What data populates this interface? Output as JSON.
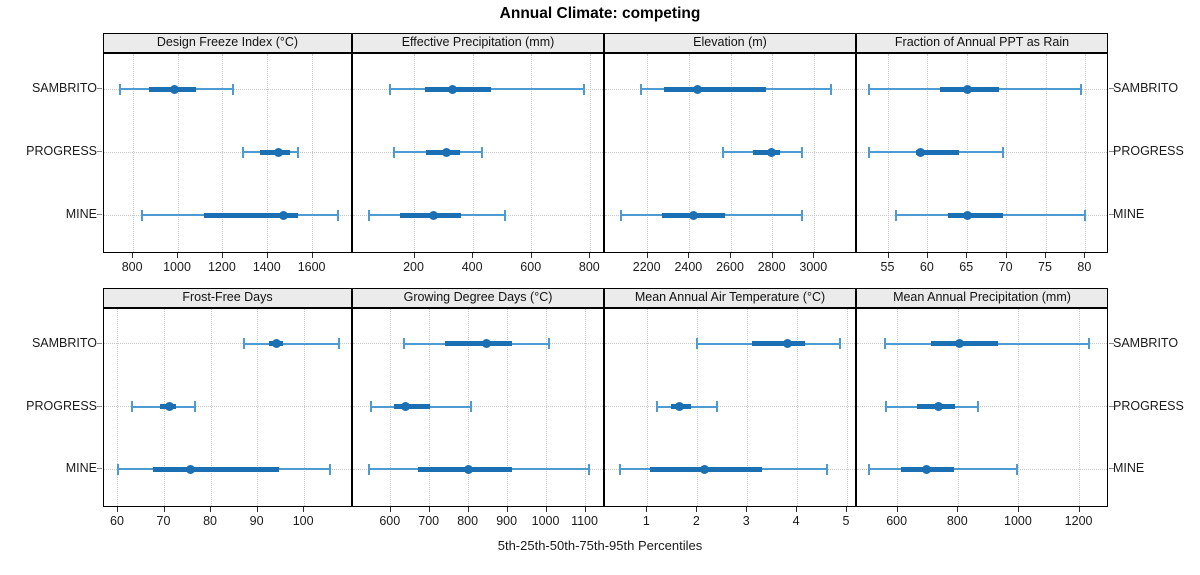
{
  "title": "Annual Climate: competing",
  "caption": "5th-25th-50th-75th-95th Percentiles",
  "colors": {
    "whisker": "#4e9bd3",
    "cap": "#4e9bd3",
    "iqr_bar": "#1b6fb3",
    "median_dot": "#1b6fb3",
    "gridline": "#c8c8c8",
    "strip_bg": "#ebebeb",
    "border": "#000000"
  },
  "chart_data": {
    "type": "interval-dotplot",
    "title": "Annual Climate: competing",
    "subtitle": "5th-25th-50th-75th-95th Percentiles",
    "percentiles": [
      5,
      25,
      50,
      75,
      95
    ],
    "rows": [
      "SAMBRITO",
      "PROGRESS",
      "MINE"
    ],
    "grid": "dotted",
    "layout": "2x4",
    "panels": [
      {
        "title": "Design Freeze Index (°C)",
        "xlim": [
          670,
          1780
        ],
        "ticks": [
          800,
          1000,
          1200,
          1400,
          1600
        ],
        "series": [
          {
            "name": "SAMBRITO",
            "values": [
              740,
              870,
              985,
              1080,
              1245
            ]
          },
          {
            "name": "PROGRESS",
            "values": [
              1290,
              1365,
              1450,
              1500,
              1535
            ]
          },
          {
            "name": "MINE",
            "values": [
              840,
              1115,
              1470,
              1535,
              1715
            ]
          }
        ]
      },
      {
        "title": "Effective Precipitation (mm)",
        "xlim": [
          -10,
          850
        ],
        "ticks": [
          200,
          400,
          600,
          800
        ],
        "series": [
          {
            "name": "SAMBRITO",
            "values": [
              115,
              235,
              330,
              460,
              780
            ]
          },
          {
            "name": "PROGRESS",
            "values": [
              130,
              240,
              310,
              355,
              430
            ]
          },
          {
            "name": "MINE",
            "values": [
              45,
              150,
              265,
              360,
              510
            ]
          }
        ]
      },
      {
        "title": "Elevation (m)",
        "xlim": [
          1995,
          3205
        ],
        "ticks": [
          2200,
          2400,
          2600,
          2800,
          3000
        ],
        "series": [
          {
            "name": "SAMBRITO",
            "values": [
              2170,
              2280,
              2440,
              2770,
              3080
            ]
          },
          {
            "name": "PROGRESS",
            "values": [
              2560,
              2705,
              2795,
              2835,
              2940
            ]
          },
          {
            "name": "MINE",
            "values": [
              2070,
              2270,
              2420,
              2570,
              2940
            ]
          }
        ]
      },
      {
        "title": "Fraction of Annual PPT as Rain",
        "xlim": [
          51,
          83
        ],
        "ticks": [
          55,
          60,
          65,
          70,
          75,
          80
        ],
        "series": [
          {
            "name": "SAMBRITO",
            "values": [
              52.5,
              61.5,
              65,
              69,
              79.5
            ]
          },
          {
            "name": "PROGRESS",
            "values": [
              52.5,
              58.5,
              59,
              64,
              69.5
            ]
          },
          {
            "name": "MINE",
            "values": [
              56,
              62.5,
              65,
              69.5,
              80
            ]
          }
        ]
      },
      {
        "title": "Frost-Free Days",
        "xlim": [
          57,
          110.5
        ],
        "ticks": [
          60,
          70,
          80,
          90,
          100
        ],
        "series": [
          {
            "name": "SAMBRITO",
            "values": [
              87,
              92.5,
              94,
              95.5,
              107.5
            ]
          },
          {
            "name": "PROGRESS",
            "values": [
              63,
              69,
              71,
              72.5,
              76.5
            ]
          },
          {
            "name": "MINE",
            "values": [
              60,
              67.5,
              75.5,
              94.5,
              105.5
            ]
          }
        ]
      },
      {
        "title": "Growing Degree Days (°C)",
        "xlim": [
          503,
          1150
        ],
        "ticks": [
          600,
          700,
          800,
          900,
          1000,
          1100
        ],
        "series": [
          {
            "name": "SAMBRITO",
            "values": [
              633,
              740,
              845,
              910,
              1005
            ]
          },
          {
            "name": "PROGRESS",
            "values": [
              550,
              607,
              638,
              700,
              805
            ]
          },
          {
            "name": "MINE",
            "values": [
              545,
              670,
              800,
              912,
              1110
            ]
          }
        ]
      },
      {
        "title": "Mean Annual Air Temperature (°C)",
        "xlim": [
          0.15,
          5.2
        ],
        "ticks": [
          1,
          2,
          3,
          4,
          5
        ],
        "series": [
          {
            "name": "SAMBRITO",
            "values": [
              2.0,
              3.1,
              3.8,
              4.15,
              4.85
            ]
          },
          {
            "name": "PROGRESS",
            "values": [
              1.2,
              1.48,
              1.65,
              1.88,
              2.4
            ]
          },
          {
            "name": "MINE",
            "values": [
              0.45,
              1.05,
              2.15,
              3.3,
              4.6
            ]
          }
        ]
      },
      {
        "title": "Mean Annual Precipitation (mm)",
        "xlim": [
          466,
          1297
        ],
        "ticks": [
          600,
          800,
          1000,
          1200
        ],
        "series": [
          {
            "name": "SAMBRITO",
            "values": [
              558,
              710,
              805,
              930,
              1230
            ]
          },
          {
            "name": "PROGRESS",
            "values": [
              563,
              665,
              735,
              790,
              865
            ]
          },
          {
            "name": "MINE",
            "values": [
              505,
              610,
              695,
              785,
              995
            ]
          }
        ]
      }
    ]
  }
}
